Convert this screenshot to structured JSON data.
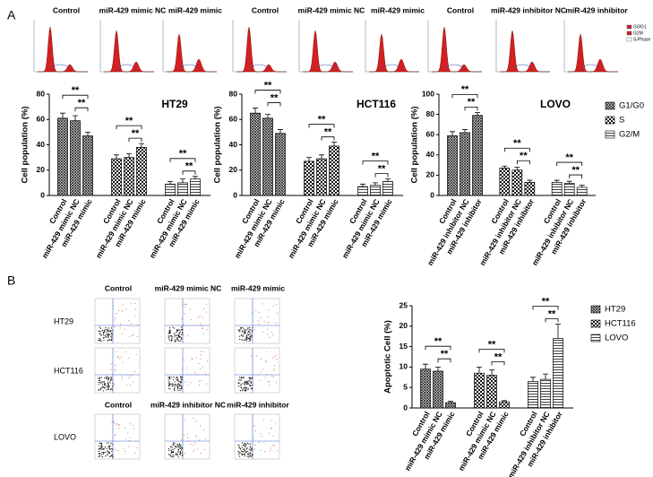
{
  "figure": {
    "panel_labels": [
      "A",
      "B"
    ],
    "histogram_labels": [
      "Control",
      "miR-429 mimic NC",
      "miR-429 mimic",
      "Control",
      "miR-429 mimic NC",
      "miR-429 mimic",
      "Control",
      "miR-429 inhibitor NC",
      "miR-429 inhibitor"
    ],
    "histogram_legend": [
      "G0/G1",
      "G2M",
      "S-Phase"
    ],
    "scatter_column_labels": [
      "Control",
      "miR-429 mimic NC",
      "miR-429 mimic"
    ],
    "scatter_lovo_column_labels": [
      "Control",
      "miR-429 inhibitor NC",
      "miR-429 inhibitor"
    ],
    "scatter_row_labels": [
      "HT29",
      "HCT116",
      "LOVO"
    ]
  },
  "chart_data": [
    {
      "type": "bar",
      "title": "HT29",
      "ylabel": "Cell population (%)",
      "ylim": [
        0,
        80
      ],
      "yticks": [
        0,
        20,
        40,
        60,
        80
      ],
      "annotation": "**",
      "legend": "none",
      "series": [
        {
          "name": "G1/G0",
          "pattern": "crosshatch",
          "categories": [
            "Control",
            "miR-429 mimic NC",
            "miR-429 mimic"
          ],
          "values": [
            61,
            59,
            47
          ],
          "errors": [
            4,
            4,
            3
          ]
        },
        {
          "name": "S",
          "pattern": "checker",
          "categories": [
            "Control",
            "miR-429 mimic NC",
            "miR-429 mimic"
          ],
          "values": [
            29,
            30,
            38
          ],
          "errors": [
            3,
            3,
            3
          ]
        },
        {
          "name": "G2/M",
          "pattern": "hlines",
          "categories": [
            "Control",
            "miR-429 mimic NC",
            "miR-429 mimic"
          ],
          "values": [
            9,
            10,
            13
          ],
          "errors": [
            2,
            3,
            2
          ]
        }
      ]
    },
    {
      "type": "bar",
      "title": "HCT116",
      "ylabel": "Cell population (%)",
      "ylim": [
        0,
        80
      ],
      "yticks": [
        0,
        20,
        40,
        60,
        80
      ],
      "annotation": "**",
      "legend": "none",
      "series": [
        {
          "name": "G1/G0",
          "pattern": "crosshatch",
          "categories": [
            "Control",
            "miR-429 mimic NC",
            "miR-429 mimic"
          ],
          "values": [
            65,
            61,
            49
          ],
          "errors": [
            4,
            3,
            3
          ]
        },
        {
          "name": "S",
          "pattern": "checker",
          "categories": [
            "Control",
            "miR-429 mimic NC",
            "miR-429 mimic"
          ],
          "values": [
            27,
            29,
            39
          ],
          "errors": [
            3,
            3,
            3
          ]
        },
        {
          "name": "G2/M",
          "pattern": "hlines",
          "categories": [
            "Control",
            "miR-429 mimic NC",
            "miR-429 mimic"
          ],
          "values": [
            7,
            8,
            11
          ],
          "errors": [
            2,
            2,
            2
          ]
        }
      ]
    },
    {
      "type": "bar",
      "title": "LOVO",
      "ylabel": "Cell population (%)",
      "ylim": [
        0,
        100
      ],
      "yticks": [
        0,
        20,
        40,
        60,
        80,
        100
      ],
      "annotation": "**",
      "legend": "right",
      "series": [
        {
          "name": "G1/G0",
          "pattern": "crosshatch",
          "categories": [
            "Control",
            "miR-429 inhibitor NC",
            "miR-429 inhibitor"
          ],
          "values": [
            59,
            62,
            79
          ],
          "errors": [
            4,
            3,
            3
          ]
        },
        {
          "name": "S",
          "pattern": "checker",
          "categories": [
            "Control",
            "miR-429 inhibitor NC",
            "miR-429 inhibitor"
          ],
          "values": [
            27,
            25,
            13
          ],
          "errors": [
            2,
            3,
            2
          ]
        },
        {
          "name": "G2/M",
          "pattern": "hlines",
          "categories": [
            "Control",
            "miR-429 inhibitor NC",
            "miR-429 inhibitor"
          ],
          "values": [
            13,
            12,
            8
          ],
          "errors": [
            2,
            2,
            2
          ]
        }
      ]
    },
    {
      "type": "bar",
      "ylabel": "Apoptotic Cell (%)",
      "ylim": [
        0,
        25
      ],
      "yticks": [
        0,
        5,
        10,
        15,
        20,
        25
      ],
      "annotation": "**",
      "legend": "right",
      "series": [
        {
          "name": "HT29",
          "pattern": "crosshatch",
          "categories": [
            "Control",
            "miR-429 mimic NC",
            "miR-429 mimic"
          ],
          "values": [
            9.5,
            9,
            1.3
          ],
          "errors": [
            1.2,
            1,
            0.3
          ]
        },
        {
          "name": "HCT116",
          "pattern": "checker",
          "categories": [
            "Control",
            "miR-429 mimic NC",
            "miR-429 mimic"
          ],
          "values": [
            8.5,
            8,
            1.5
          ],
          "errors": [
            1.5,
            1.3,
            0.3
          ]
        },
        {
          "name": "LOVO",
          "pattern": "hlines",
          "categories": [
            "Control",
            "miR-429 inhibitor NC",
            "miR-429 inhibitor"
          ],
          "values": [
            6.5,
            7,
            17
          ],
          "errors": [
            1,
            1.3,
            3.5
          ]
        }
      ]
    }
  ]
}
